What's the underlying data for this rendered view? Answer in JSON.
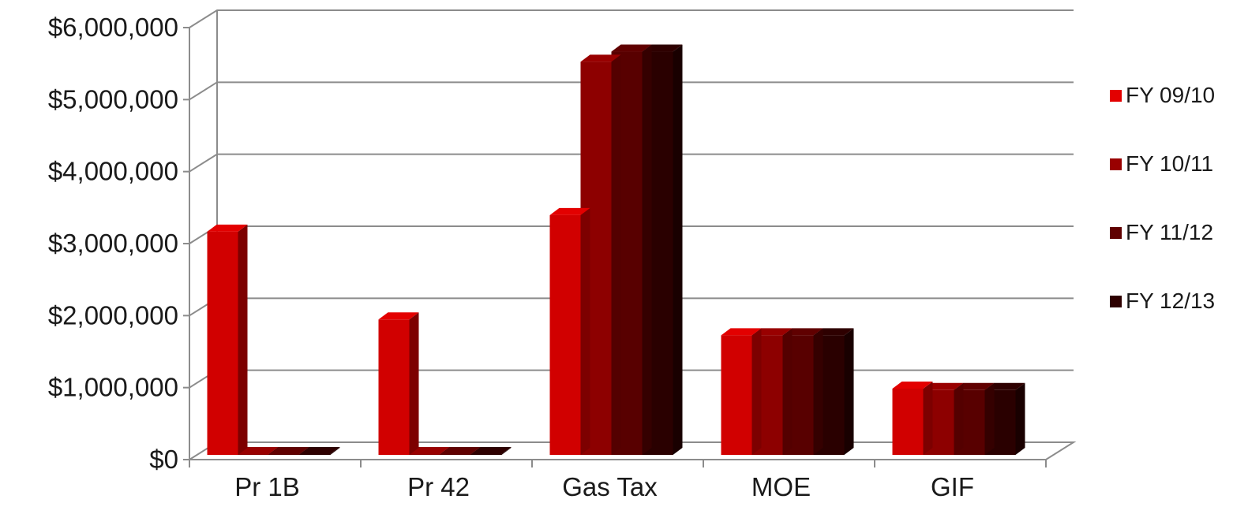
{
  "chart_data": {
    "type": "bar",
    "title": "",
    "xlabel": "",
    "ylabel": "",
    "categories": [
      "Pr 1B",
      "Pr 42",
      "Gas Tax",
      "MOE",
      "GIF"
    ],
    "series": [
      {
        "name": "FY 09/10",
        "color": "#e30000",
        "values": [
          3100000,
          1880000,
          3330000,
          1660000,
          920000
        ]
      },
      {
        "name": "FY 10/11",
        "color": "#990000",
        "values": [
          0,
          0,
          5460000,
          1660000,
          900000
        ]
      },
      {
        "name": "FY 11/12",
        "color": "#600000",
        "values": [
          0,
          0,
          5600000,
          1660000,
          900000
        ]
      },
      {
        "name": "FY 12/13",
        "color": "#2e0000",
        "values": [
          0,
          0,
          5600000,
          1660000,
          900000
        ]
      }
    ],
    "ylim": [
      0,
      6000000
    ],
    "yticks": [
      0,
      1000000,
      2000000,
      3000000,
      4000000,
      5000000,
      6000000
    ],
    "ytick_labels": [
      "$0",
      "$1,000,000",
      "$2,000,000",
      "$3,000,000",
      "$4,000,000",
      "$5,000,000",
      "$6,000,000"
    ],
    "grid": true,
    "legend_position": "right",
    "style": "3d-clustered-column"
  }
}
